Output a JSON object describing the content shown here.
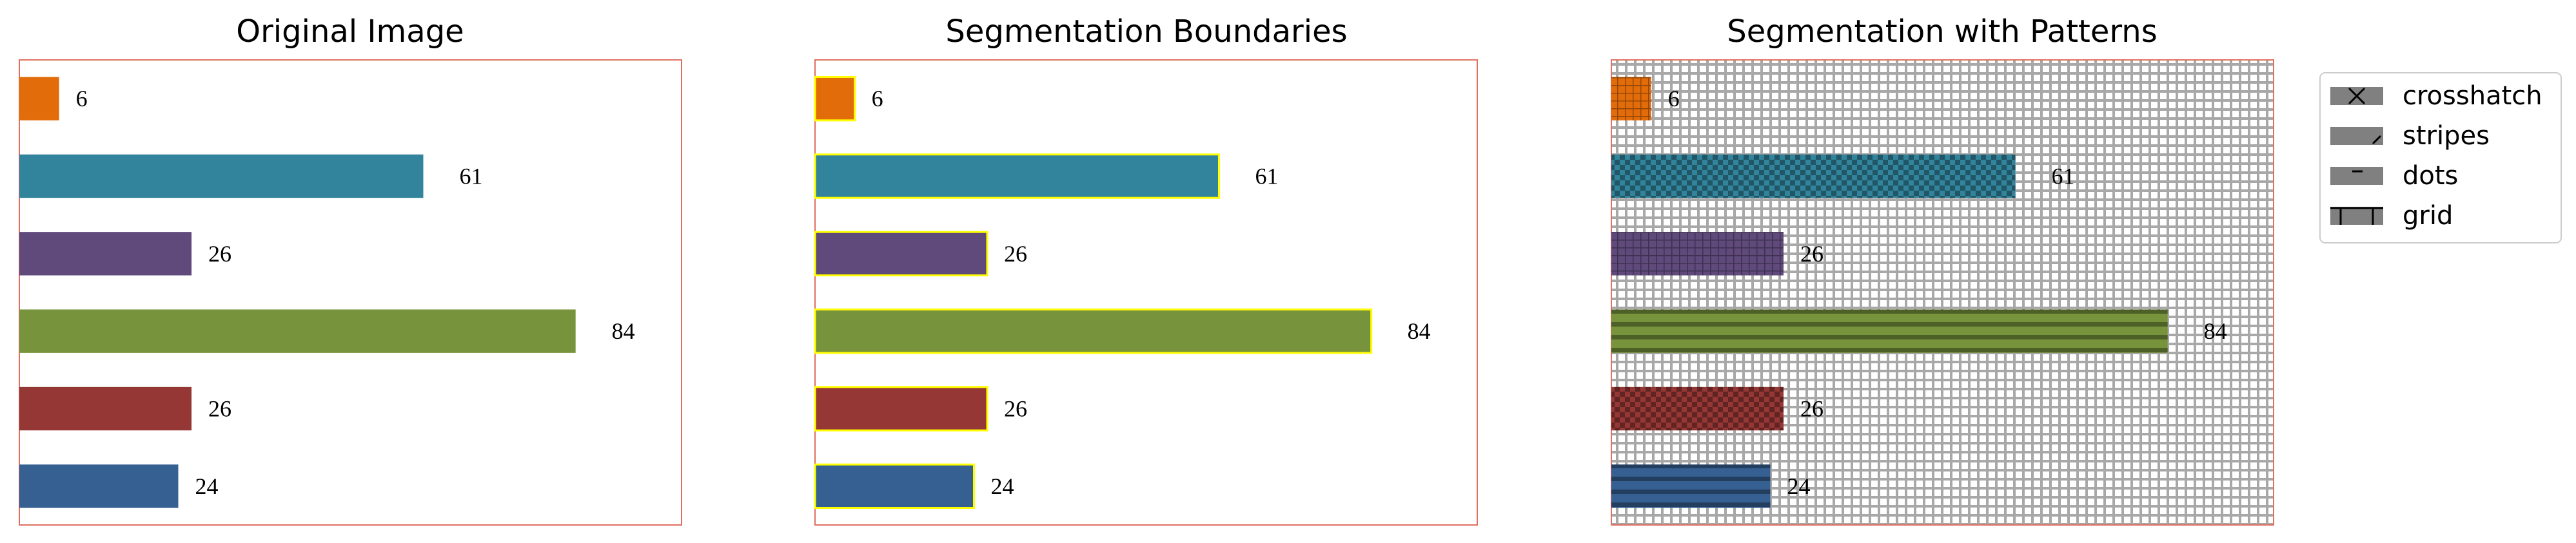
{
  "panels": [
    {
      "title": "Original Image"
    },
    {
      "title": "Segmentation Boundaries"
    },
    {
      "title": "Segmentation with Patterns"
    }
  ],
  "legend": {
    "items": [
      {
        "label": "crosshatch",
        "icon": "crosshatch-pattern-icon"
      },
      {
        "label": "stripes",
        "icon": "stripes-pattern-icon"
      },
      {
        "label": "dots",
        "icon": "dots-pattern-icon"
      },
      {
        "label": "grid",
        "icon": "grid-pattern-icon"
      }
    ]
  },
  "colors": {
    "frame": "#e07060",
    "boundary": "#ffff00",
    "background_pattern": "#a8a8a8"
  },
  "chart_data": {
    "type": "bar",
    "orientation": "horizontal",
    "xlim": [
      0,
      100
    ],
    "grid": false,
    "legend_position": "right",
    "categories": [
      "",
      "",
      "",
      "",
      "",
      ""
    ],
    "values": [
      6,
      61,
      26,
      84,
      26,
      24
    ],
    "value_labels": [
      "6",
      "61",
      "26",
      "84",
      "26",
      "24"
    ],
    "bar_colors": [
      "#e36c0a",
      "#31849b",
      "#5f4a7b",
      "#77933c",
      "#953735",
      "#366092"
    ]
  }
}
